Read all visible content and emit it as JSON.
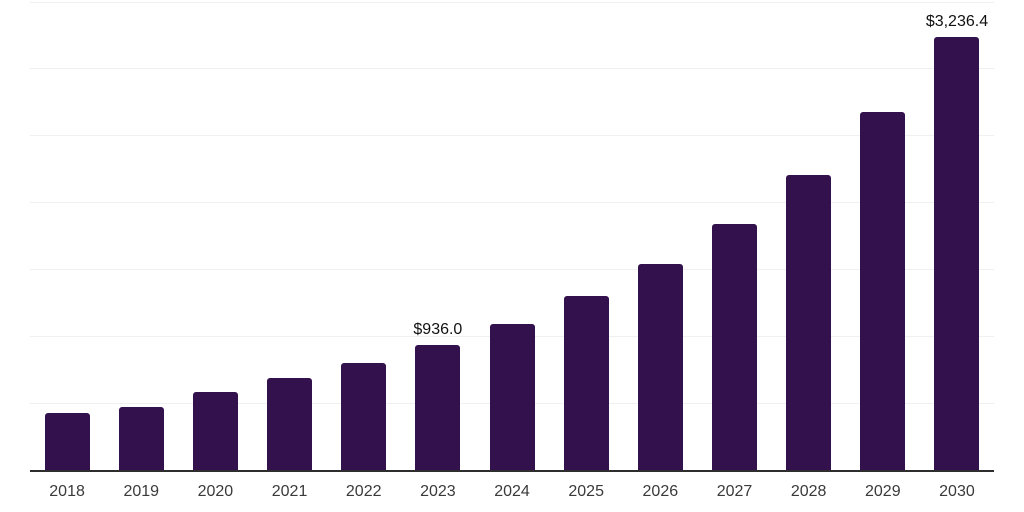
{
  "chart_data": {
    "type": "bar",
    "title": "",
    "xlabel": "",
    "ylabel": "",
    "categories": [
      "2018",
      "2019",
      "2020",
      "2021",
      "2022",
      "2023",
      "2024",
      "2025",
      "2026",
      "2027",
      "2028",
      "2029",
      "2030"
    ],
    "values": [
      430,
      471,
      580,
      689,
      800,
      936.0,
      1093,
      1298,
      1544,
      1840,
      2208,
      2678,
      3236.4
    ],
    "data_labels": [
      "",
      "",
      "",
      "",
      "",
      "$936.0",
      "",
      "",
      "",
      "",
      "",
      "",
      "$3,236.4"
    ],
    "ylim": [
      0,
      3500
    ],
    "grid_step": 500,
    "grid": "horizontal-only",
    "legend_position": "none",
    "y_axis_tick_labels_visible": false,
    "colors": {
      "bar": "#33114d",
      "axis_line": "#2e2e2e",
      "gridline": "#f0f0f0",
      "data_label": "#111111",
      "tick_label": "#3a3a3a",
      "background": "#ffffff"
    }
  }
}
